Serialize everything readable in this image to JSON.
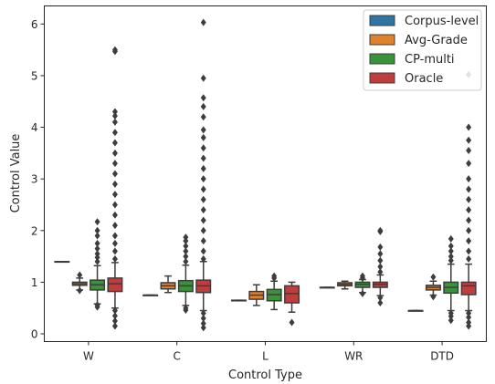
{
  "chart_data": {
    "type": "box",
    "xlabel": "Control Type",
    "ylabel": "Control Value",
    "ylim": [
      -0.15,
      6.35
    ],
    "yticks": [
      0,
      1,
      2,
      3,
      4,
      5,
      6
    ],
    "categories": [
      "W",
      "C",
      "L",
      "WR",
      "DTD"
    ],
    "legend_position": "top-right",
    "series": [
      {
        "name": "Corpus-level",
        "color": "#3274a1",
        "boxes": [
          {
            "q1": 1.4,
            "median": 1.4,
            "q3": 1.4,
            "whisker_low": 1.4,
            "whisker_high": 1.4,
            "outliers": []
          },
          {
            "q1": 0.75,
            "median": 0.75,
            "q3": 0.75,
            "whisker_low": 0.75,
            "whisker_high": 0.75,
            "outliers": []
          },
          {
            "q1": 0.65,
            "median": 0.65,
            "q3": 0.65,
            "whisker_low": 0.65,
            "whisker_high": 0.65,
            "outliers": []
          },
          {
            "q1": 0.9,
            "median": 0.9,
            "q3": 0.9,
            "whisker_low": 0.9,
            "whisker_high": 0.9,
            "outliers": []
          },
          {
            "q1": 0.45,
            "median": 0.45,
            "q3": 0.45,
            "whisker_low": 0.45,
            "whisker_high": 0.45,
            "outliers": []
          }
        ]
      },
      {
        "name": "Avg-Grade",
        "color": "#e1812c",
        "boxes": [
          {
            "q1": 0.94,
            "median": 0.97,
            "q3": 1.0,
            "whisker_low": 0.85,
            "whisker_high": 1.08,
            "outliers": [
              1.14,
              0.84
            ]
          },
          {
            "q1": 0.87,
            "median": 0.93,
            "q3": 0.99,
            "whisker_low": 0.8,
            "whisker_high": 1.12,
            "outliers": []
          },
          {
            "q1": 0.67,
            "median": 0.75,
            "q3": 0.82,
            "whisker_low": 0.55,
            "whisker_high": 0.95,
            "outliers": []
          },
          {
            "q1": 0.93,
            "median": 0.96,
            "q3": 0.99,
            "whisker_low": 0.87,
            "whisker_high": 1.02,
            "outliers": []
          },
          {
            "q1": 0.85,
            "median": 0.9,
            "q3": 0.94,
            "whisker_low": 0.75,
            "whisker_high": 1.02,
            "outliers": [
              1.1,
              0.72
            ]
          }
        ]
      },
      {
        "name": "CP-multi",
        "color": "#3a923a",
        "boxes": [
          {
            "q1": 0.85,
            "median": 0.95,
            "q3": 1.04,
            "whisker_low": 0.58,
            "whisker_high": 1.32,
            "outliers": [
              1.4,
              1.48,
              1.55,
              1.65,
              1.75,
              1.9,
              2.0,
              2.17,
              0.52,
              0.56
            ]
          },
          {
            "q1": 0.82,
            "median": 0.93,
            "q3": 1.03,
            "whisker_low": 0.55,
            "whisker_high": 1.33,
            "outliers": [
              1.4,
              1.5,
              1.6,
              1.7,
              1.8,
              1.87,
              0.5,
              0.46
            ]
          },
          {
            "q1": 0.64,
            "median": 0.76,
            "q3": 0.86,
            "whisker_low": 0.47,
            "whisker_high": 1.02,
            "outliers": [
              1.08,
              1.12
            ]
          },
          {
            "q1": 0.9,
            "median": 0.96,
            "q3": 1.0,
            "whisker_low": 0.8,
            "whisker_high": 1.05,
            "outliers": [
              1.08,
              1.12,
              0.78
            ]
          },
          {
            "q1": 0.79,
            "median": 0.9,
            "q3": 1.0,
            "whisker_low": 0.45,
            "whisker_high": 1.35,
            "outliers": [
              1.42,
              1.5,
              1.6,
              1.7,
              1.84,
              0.4,
              0.34,
              0.26
            ]
          }
        ]
      },
      {
        "name": "Oracle",
        "color": "#c03d3e",
        "boxes": [
          {
            "q1": 0.82,
            "median": 0.97,
            "q3": 1.08,
            "whisker_low": 0.5,
            "whisker_high": 1.38,
            "outliers": [
              1.45,
              1.6,
              1.75,
              1.9,
              2.1,
              2.3,
              2.5,
              2.7,
              2.9,
              3.1,
              3.3,
              3.5,
              3.7,
              3.9,
              4.1,
              4.22,
              4.3,
              5.47,
              5.5,
              0.45,
              0.35,
              0.25,
              0.15
            ]
          },
          {
            "q1": 0.8,
            "median": 0.93,
            "q3": 1.04,
            "whisker_low": 0.45,
            "whisker_high": 1.4,
            "outliers": [
              1.45,
              1.6,
              1.8,
              2.0,
              2.2,
              2.4,
              2.6,
              2.8,
              3.0,
              3.2,
              3.4,
              3.6,
              3.8,
              3.95,
              4.2,
              4.4,
              4.57,
              4.95,
              6.03,
              0.4,
              0.3,
              0.2,
              0.12
            ]
          },
          {
            "q1": 0.6,
            "median": 0.78,
            "q3": 0.93,
            "whisker_low": 0.42,
            "whisker_high": 1.0,
            "outliers": [
              0.22
            ]
          },
          {
            "q1": 0.9,
            "median": 0.96,
            "q3": 1.0,
            "whisker_low": 0.74,
            "whisker_high": 1.14,
            "outliers": [
              1.2,
              1.3,
              1.42,
              1.55,
              1.68,
              1.98,
              2.0,
              0.7,
              0.6
            ]
          },
          {
            "q1": 0.76,
            "median": 0.93,
            "q3": 1.0,
            "whisker_low": 0.45,
            "whisker_high": 1.35,
            "outliers": [
              1.45,
              1.6,
              1.8,
              2.0,
              2.2,
              2.4,
              2.6,
              2.8,
              3.0,
              3.3,
              3.55,
              3.75,
              4.0,
              5.02,
              0.4,
              0.32,
              0.22,
              0.15
            ]
          }
        ]
      }
    ]
  }
}
